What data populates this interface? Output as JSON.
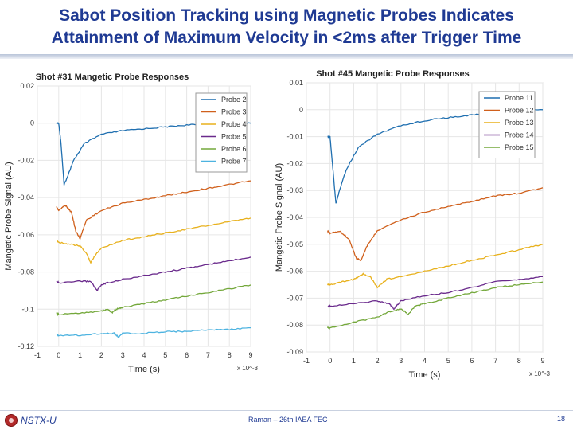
{
  "slide": {
    "title_line1": "Sabot Position Tracking using Magnetic Probes Indicates",
    "title_line2": "Attainment of Maximum Velocity in <2ms after Trigger Time",
    "footer_org": "NSTX-U",
    "footer_center": "Raman – 26th IAEA FEC",
    "footer_page": "18"
  },
  "colors": {
    "title": "#1f3a93",
    "series": [
      "#1f6fb0",
      "#d0601c",
      "#e8b11d",
      "#6a2a8c",
      "#74a83b",
      "#4db3e0"
    ]
  },
  "chart_data": [
    {
      "type": "line",
      "title": "Shot #31 Mangetic Probe Responses",
      "xlabel": "Time (s)",
      "ylabel": "Mangetic Probe Signal (AU)",
      "x_exponent": "x 10^-3",
      "xlim": [
        -1,
        9
      ],
      "ylim": [
        -0.12,
        0.02
      ],
      "xticks": [
        -1,
        0,
        1,
        2,
        3,
        4,
        5,
        6,
        7,
        8,
        9
      ],
      "xtick_labels": [
        "-1",
        "0",
        "1",
        "2",
        "3",
        "4",
        "5",
        "6",
        "7",
        "8",
        "9"
      ],
      "yticks": [
        0.02,
        0,
        -0.02,
        -0.04,
        -0.06,
        -0.08,
        -0.1,
        -0.12
      ],
      "ytick_labels": [
        "0.02",
        "0",
        "-0.02",
        "-0.04",
        "-0.06",
        "-0.08",
        "-0.1",
        "-0.12"
      ],
      "grid": true,
      "legend": "top-right",
      "series": [
        {
          "name": "Probe 2",
          "color_index": 0,
          "x": [
            -0.1,
            0,
            0.1,
            0.25,
            0.4,
            0.7,
            1.2,
            2,
            3,
            4,
            5,
            6,
            7,
            8,
            9
          ],
          "y": [
            0.0,
            0.0,
            -0.01,
            -0.033,
            -0.029,
            -0.02,
            -0.011,
            -0.006,
            -0.004,
            -0.003,
            -0.002,
            -0.001,
            -0.0005,
            0.0,
            0.0
          ]
        },
        {
          "name": "Probe 3",
          "color_index": 1,
          "x": [
            -0.1,
            0,
            0.3,
            0.6,
            0.8,
            1.0,
            1.3,
            2,
            3,
            4,
            5,
            6,
            7,
            8,
            9
          ],
          "y": [
            -0.045,
            -0.047,
            -0.044,
            -0.048,
            -0.058,
            -0.062,
            -0.052,
            -0.047,
            -0.043,
            -0.041,
            -0.039,
            -0.037,
            -0.035,
            -0.033,
            -0.031
          ]
        },
        {
          "name": "Probe 4",
          "color_index": 2,
          "x": [
            -0.1,
            0,
            0.5,
            1.0,
            1.3,
            1.5,
            1.7,
            2,
            3,
            4,
            5,
            6,
            7,
            8,
            9
          ],
          "y": [
            -0.063,
            -0.064,
            -0.065,
            -0.066,
            -0.07,
            -0.075,
            -0.071,
            -0.067,
            -0.063,
            -0.061,
            -0.059,
            -0.057,
            -0.055,
            -0.053,
            -0.051
          ]
        },
        {
          "name": "Probe 5",
          "color_index": 3,
          "x": [
            -0.1,
            0,
            1.0,
            1.5,
            1.8,
            2.0,
            2.2,
            3,
            4,
            5,
            6,
            7,
            8,
            9
          ],
          "y": [
            -0.085,
            -0.086,
            -0.085,
            -0.085,
            -0.09,
            -0.087,
            -0.086,
            -0.084,
            -0.082,
            -0.08,
            -0.078,
            -0.076,
            -0.074,
            -0.072
          ]
        },
        {
          "name": "Probe 6",
          "color_index": 4,
          "x": [
            -0.1,
            0,
            1.0,
            2.0,
            2.3,
            2.5,
            2.7,
            3,
            4,
            5,
            6,
            7,
            8,
            9
          ],
          "y": [
            -0.102,
            -0.103,
            -0.102,
            -0.101,
            -0.1,
            -0.102,
            -0.1,
            -0.099,
            -0.097,
            -0.095,
            -0.093,
            -0.091,
            -0.089,
            -0.087
          ]
        },
        {
          "name": "Probe 7",
          "color_index": 5,
          "x": [
            -0.1,
            0,
            1.0,
            2.0,
            2.6,
            2.8,
            3.0,
            4,
            5,
            6,
            7,
            8,
            9
          ],
          "y": [
            -0.114,
            -0.114,
            -0.114,
            -0.113,
            -0.113,
            -0.115,
            -0.113,
            -0.113,
            -0.112,
            -0.112,
            -0.111,
            -0.111,
            -0.11
          ]
        }
      ]
    },
    {
      "type": "line",
      "title": "Shot #45 Mangetic Probe Responses",
      "xlabel": "Time (s)",
      "ylabel": "Mangetic Probe Signal (AU)",
      "x_exponent": "x 10^-3",
      "xlim": [
        -1,
        9
      ],
      "ylim": [
        -0.09,
        0.01
      ],
      "xticks": [
        -1,
        0,
        1,
        2,
        3,
        4,
        5,
        6,
        7,
        8,
        9
      ],
      "xtick_labels": [
        "-1",
        "0",
        "1",
        "2",
        "3",
        "4",
        "5",
        "6",
        "7",
        "8",
        "9"
      ],
      "yticks": [
        0.01,
        0,
        -0.01,
        -0.02,
        -0.03,
        -0.04,
        -0.05,
        -0.06,
        -0.07,
        -0.08,
        -0.09
      ],
      "ytick_labels": [
        "0.01",
        "0",
        "-0.01",
        "-0.02",
        "-0.03",
        "-0.04",
        "-0.05",
        "-0.06",
        "-0.07",
        "-0.08",
        "-0.09"
      ],
      "grid": true,
      "legend": "top-right",
      "series": [
        {
          "name": "Probe 11",
          "color_index": 0,
          "x": [
            -0.1,
            0,
            0.1,
            0.25,
            0.4,
            0.7,
            1.2,
            2,
            3,
            4,
            5,
            6,
            7,
            8,
            9
          ],
          "y": [
            -0.01,
            -0.01,
            -0.02,
            -0.035,
            -0.03,
            -0.022,
            -0.014,
            -0.009,
            -0.006,
            -0.004,
            -0.003,
            -0.002,
            -0.001,
            0.0,
            0.0
          ]
        },
        {
          "name": "Probe 12",
          "color_index": 1,
          "x": [
            -0.1,
            0,
            0.4,
            0.8,
            1.1,
            1.3,
            1.6,
            2,
            3,
            4,
            5,
            6,
            7,
            8,
            9
          ],
          "y": [
            -0.045,
            -0.046,
            -0.045,
            -0.048,
            -0.055,
            -0.056,
            -0.05,
            -0.045,
            -0.041,
            -0.038,
            -0.036,
            -0.034,
            -0.032,
            -0.031,
            -0.029
          ]
        },
        {
          "name": "Probe 13",
          "color_index": 2,
          "x": [
            -0.1,
            0,
            0.5,
            1.0,
            1.4,
            1.7,
            2.0,
            2.4,
            3,
            4,
            5,
            6,
            7,
            8,
            9
          ],
          "y": [
            -0.065,
            -0.065,
            -0.064,
            -0.063,
            -0.061,
            -0.062,
            -0.066,
            -0.063,
            -0.062,
            -0.06,
            -0.058,
            -0.056,
            -0.054,
            -0.052,
            -0.05
          ]
        },
        {
          "name": "Probe 14",
          "color_index": 3,
          "x": [
            -0.1,
            0,
            1.0,
            2.0,
            2.5,
            2.7,
            3.0,
            4,
            5,
            6,
            7,
            8,
            9
          ],
          "y": [
            -0.073,
            -0.073,
            -0.072,
            -0.071,
            -0.072,
            -0.074,
            -0.071,
            -0.069,
            -0.068,
            -0.066,
            -0.064,
            -0.063,
            -0.062
          ]
        },
        {
          "name": "Probe 15",
          "color_index": 4,
          "x": [
            -0.1,
            0,
            1.0,
            2.0,
            2.5,
            3.0,
            3.3,
            3.6,
            4,
            5,
            6,
            7,
            8,
            9
          ],
          "y": [
            -0.081,
            -0.081,
            -0.079,
            -0.077,
            -0.075,
            -0.074,
            -0.076,
            -0.073,
            -0.072,
            -0.07,
            -0.068,
            -0.066,
            -0.065,
            -0.064
          ]
        }
      ]
    }
  ]
}
